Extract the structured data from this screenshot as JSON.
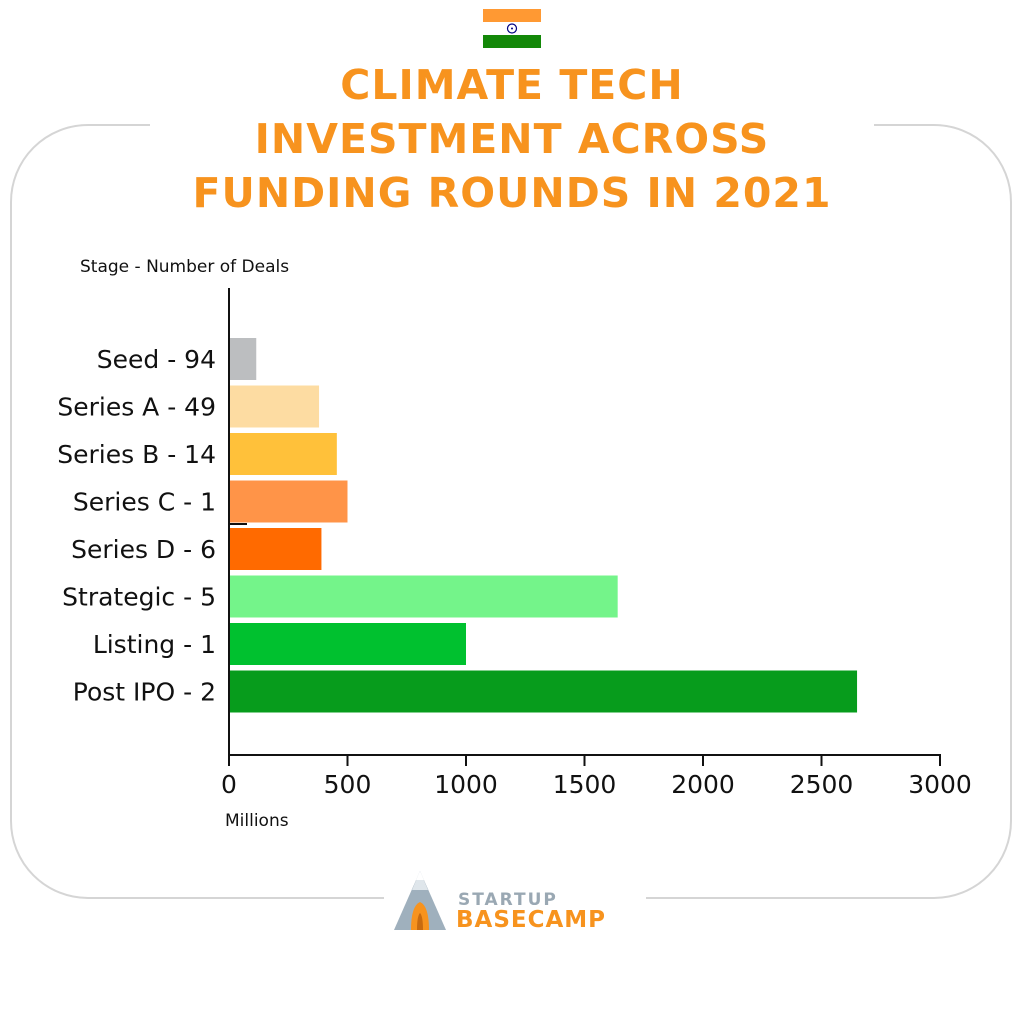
{
  "flag": {
    "colors": [
      "#ff9933",
      "#ffffff",
      "#138808"
    ],
    "chakra_color": "#000080"
  },
  "title_lines": [
    "CLIMATE TECH",
    "INVESTMENT ACROSS",
    "FUNDING ROUNDS IN 2021"
  ],
  "chart_data": {
    "type": "bar",
    "orientation": "horizontal",
    "title": "CLIMATE TECH INVESTMENT ACROSS FUNDING ROUNDS IN 2021",
    "ylabel": "Stage - Number of Deals",
    "xlabel": "Millions",
    "xlim": [
      0,
      3000
    ],
    "xticks": [
      0,
      500,
      1000,
      1500,
      2000,
      2500,
      3000
    ],
    "grid": false,
    "categories": [
      "Seed - 94",
      "Series A - 49",
      "Series B - 14",
      "Series C - 1",
      "Series D - 6",
      "Strategic - 5",
      "Listing - 1",
      "Post IPO - 2"
    ],
    "values": [
      115,
      380,
      455,
      500,
      390,
      1640,
      1000,
      2650
    ],
    "colors": [
      "#bcbec0",
      "#fddca2",
      "#ffc13a",
      "#ff9448",
      "#ff6a00",
      "#74f48a",
      "#00c12f",
      "#079c1c"
    ]
  },
  "logo": {
    "line1": "STARTUP",
    "line2": "BASECAMP"
  }
}
